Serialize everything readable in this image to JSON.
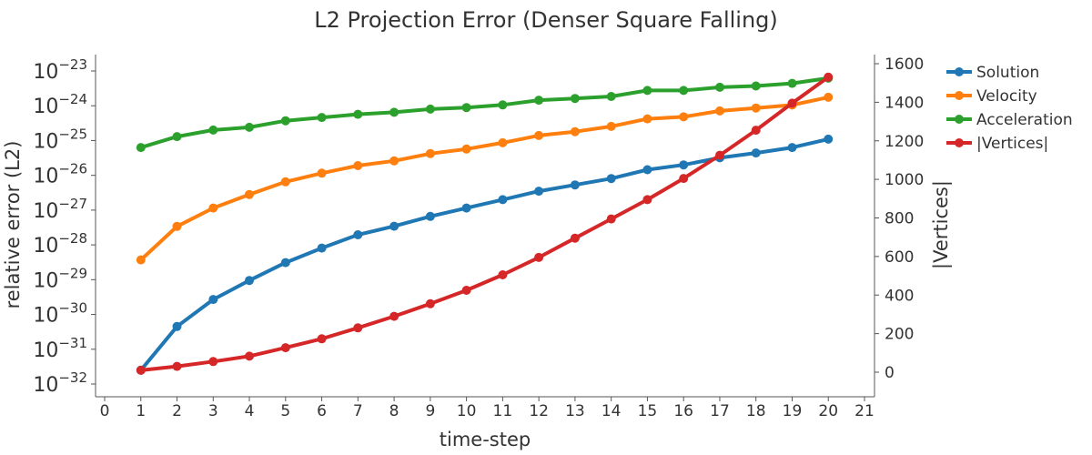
{
  "chart_data": {
    "type": "line",
    "title": "L2 Projection Error (Denser Square Falling)",
    "xlabel": "time-step",
    "ylabel": "relative error (L2)",
    "y2label": "|Vertices|",
    "y_scale": "log",
    "xlim": [
      0,
      21
    ],
    "x_ticks": [
      0,
      1,
      2,
      3,
      4,
      5,
      6,
      7,
      8,
      9,
      10,
      11,
      12,
      13,
      14,
      15,
      16,
      17,
      18,
      19,
      20,
      21
    ],
    "y_tick_exponents": [
      -32,
      -31,
      -30,
      -29,
      -28,
      -27,
      -26,
      -25,
      -24,
      -23
    ],
    "y_tick_base": "10",
    "y2_ticks": [
      0,
      200,
      400,
      600,
      800,
      1000,
      1200,
      1400,
      1600
    ],
    "grid": false,
    "legend_position": "outside-right",
    "x": [
      1,
      2,
      3,
      4,
      5,
      6,
      7,
      8,
      9,
      10,
      11,
      12,
      13,
      14,
      15,
      16,
      17,
      18,
      19,
      20
    ],
    "series": [
      {
        "name": "Solution",
        "axis": "left",
        "color": "#1f77b4",
        "values": [
          2.5e-32,
          4.5e-31,
          2.7e-30,
          9.5e-30,
          3.1e-29,
          8.1e-29,
          1.95e-28,
          3.45e-28,
          6.6e-28,
          1.15e-27,
          2e-27,
          3.5e-27,
          5.3e-27,
          8.1e-27,
          1.45e-26,
          2e-26,
          3.2e-26,
          4.4e-26,
          6.3e-26,
          1.1e-25
        ]
      },
      {
        "name": "Velocity",
        "axis": "left",
        "color": "#ff7f0e",
        "values": [
          3.7e-29,
          3.4e-28,
          1.15e-27,
          2.8e-27,
          6.5e-27,
          1.15e-26,
          1.9e-26,
          2.6e-26,
          4.2e-26,
          5.7e-26,
          8.6e-26,
          1.4e-25,
          1.8e-25,
          2.55e-25,
          4.2e-25,
          4.8e-25,
          7.1e-25,
          8.6e-25,
          1.05e-24,
          1.75e-24
        ]
      },
      {
        "name": "Acceleration",
        "axis": "left",
        "color": "#2ca02c",
        "values": [
          6.3e-26,
          1.3e-25,
          2e-25,
          2.4e-25,
          3.7e-25,
          4.6e-25,
          5.7e-25,
          6.5e-25,
          8e-25,
          8.9e-25,
          1.06e-24,
          1.45e-24,
          1.62e-24,
          1.85e-24,
          2.75e-24,
          2.75e-24,
          3.4e-24,
          3.7e-24,
          4.4e-24,
          6.2e-24
        ]
      },
      {
        "name": "|Vertices|",
        "axis": "right",
        "color": "#d62728",
        "values": [
          10,
          30,
          55,
          83,
          127,
          173,
          230,
          290,
          355,
          425,
          505,
          595,
          695,
          795,
          895,
          1005,
          1125,
          1255,
          1395,
          1530
        ]
      }
    ]
  }
}
